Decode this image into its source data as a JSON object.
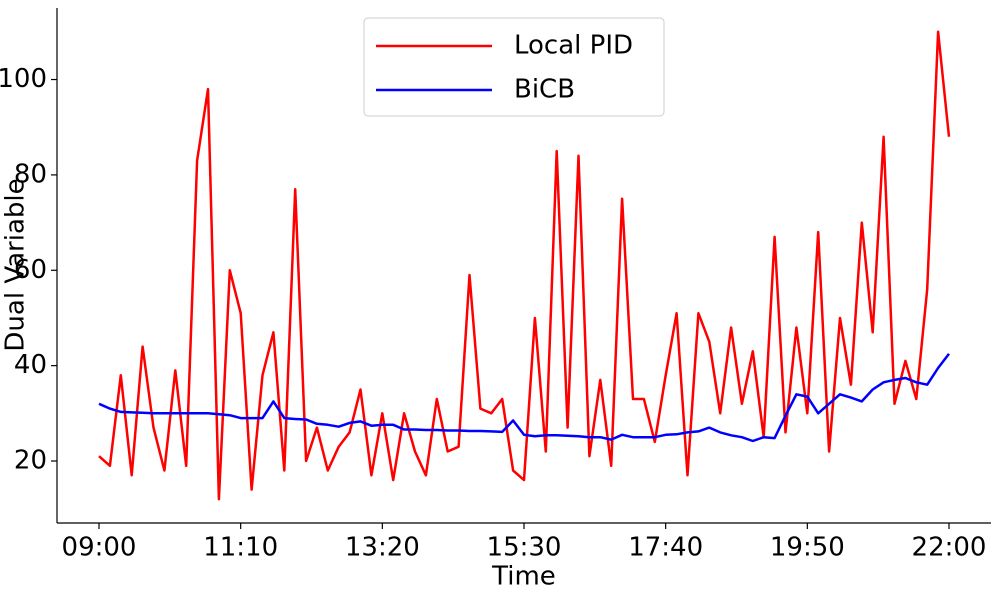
{
  "chart_data": {
    "type": "line",
    "x_label": "Time",
    "y_label": "Dual Variable",
    "x": [
      "09:00",
      "09:10",
      "09:20",
      "09:30",
      "09:40",
      "09:50",
      "10:00",
      "10:10",
      "10:20",
      "10:30",
      "10:40",
      "10:50",
      "11:00",
      "11:10",
      "11:20",
      "11:30",
      "11:40",
      "11:50",
      "12:00",
      "12:10",
      "12:20",
      "12:30",
      "12:40",
      "12:50",
      "13:00",
      "13:10",
      "13:20",
      "13:30",
      "13:40",
      "13:50",
      "14:00",
      "14:10",
      "14:20",
      "14:30",
      "14:40",
      "14:50",
      "15:00",
      "15:10",
      "15:20",
      "15:30",
      "15:40",
      "15:50",
      "16:00",
      "16:10",
      "16:20",
      "16:30",
      "16:40",
      "16:50",
      "17:00",
      "17:10",
      "17:20",
      "17:30",
      "17:40",
      "17:50",
      "18:00",
      "18:10",
      "18:20",
      "18:30",
      "18:40",
      "18:50",
      "19:00",
      "19:10",
      "19:20",
      "19:30",
      "19:40",
      "19:50",
      "20:00",
      "20:10",
      "20:20",
      "20:30",
      "20:40",
      "20:50",
      "21:00",
      "21:10",
      "21:20",
      "21:30",
      "21:40",
      "21:50",
      "22:00"
    ],
    "series": [
      {
        "name": "Local PID",
        "color": "#ff0000",
        "values": [
          21,
          19,
          38,
          17,
          44,
          27,
          18,
          39,
          19,
          83,
          98,
          12,
          60,
          51,
          14,
          38,
          47,
          18,
          77,
          20,
          27,
          18,
          23,
          26,
          35,
          17,
          30,
          16,
          30,
          22,
          17,
          33,
          22,
          23,
          59,
          31,
          30,
          33,
          18,
          16,
          50,
          22,
          85,
          27,
          84,
          21,
          37,
          19,
          75,
          33,
          33,
          24,
          38,
          51,
          17,
          51,
          45,
          30,
          48,
          32,
          43,
          25,
          67,
          26,
          48,
          30,
          68,
          22,
          50,
          36,
          70,
          47,
          88,
          32,
          41,
          33,
          56,
          110,
          88
        ]
      },
      {
        "name": "BiCB",
        "color": "#0000ff",
        "values": [
          32,
          31,
          30.3,
          30.2,
          30.1,
          30,
          30,
          30,
          30,
          30,
          30,
          29.8,
          29.6,
          29,
          29,
          29,
          32.5,
          29,
          28.8,
          28.7,
          27.8,
          27.6,
          27.2,
          28,
          28.3,
          27.4,
          27.6,
          27.6,
          26.6,
          26.6,
          26.5,
          26.5,
          26.4,
          26.4,
          26.3,
          26.3,
          26.2,
          26.1,
          28.5,
          25.5,
          25.2,
          25.4,
          25.4,
          25.3,
          25.2,
          25,
          25,
          24.5,
          25.5,
          25,
          25,
          25,
          25.5,
          25.6,
          26,
          26.2,
          27,
          26,
          25.4,
          25,
          24.2,
          25,
          24.8,
          29.5,
          34,
          33.5,
          30,
          32,
          34,
          33.3,
          32.5,
          35,
          36.5,
          37,
          37.4,
          36.5,
          36,
          39.5,
          42.5
        ]
      }
    ],
    "xticks": [
      "09:00",
      "11:10",
      "13:20",
      "15:30",
      "17:40",
      "19:50",
      "22:00"
    ],
    "ylim": [
      7,
      115
    ],
    "yticks": [
      20,
      40,
      60,
      80,
      100
    ],
    "grid": false,
    "legend": "upper center"
  }
}
